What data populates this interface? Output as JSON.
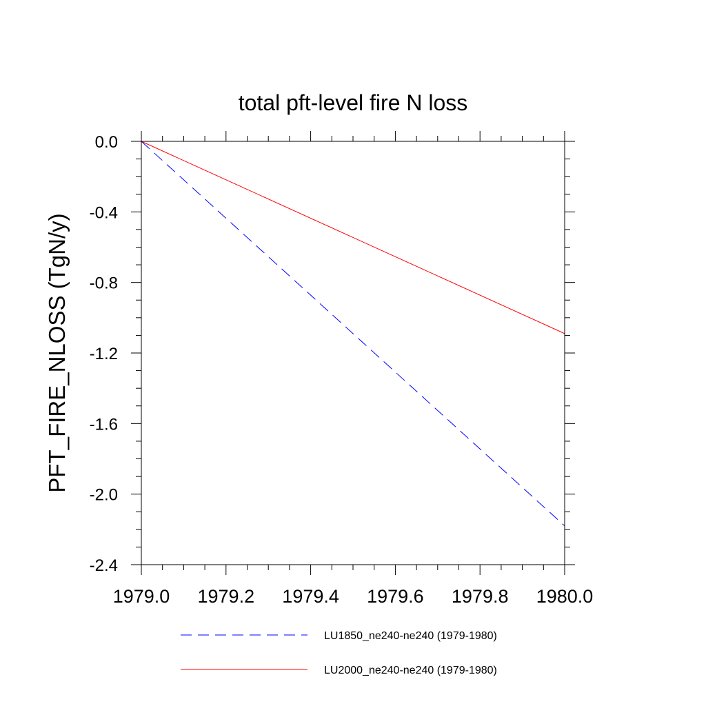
{
  "chart_data": {
    "type": "line",
    "title": "total pft-level fire N loss",
    "xlabel": "",
    "ylabel": "PFT_FIRE_NLOSS  (TgN/y)",
    "xlim": [
      1979.0,
      1980.0
    ],
    "ylim": [
      -2.4,
      0.0
    ],
    "x_ticks": [
      1979.0,
      1979.2,
      1979.4,
      1979.6,
      1979.8,
      1980.0
    ],
    "x_tick_labels": [
      "1979.0",
      "1979.2",
      "1979.4",
      "1979.6",
      "1979.8",
      "1980.0"
    ],
    "y_ticks": [
      0.0,
      -0.4,
      -0.8,
      -1.2,
      -1.6,
      -2.0,
      -2.4
    ],
    "y_tick_labels": [
      "0.0",
      "-0.4",
      "-0.8",
      "-1.2",
      "-1.6",
      "-2.0",
      "-2.4"
    ],
    "grid": false,
    "legend_position": "bottom",
    "series": [
      {
        "name": "LU1850_ne240-ne240 (1979-1980)",
        "color": "#0000ff",
        "style": "dashed",
        "x": [
          1979.0,
          1980.0
        ],
        "y": [
          0.0,
          -2.18
        ]
      },
      {
        "name": "LU2000_ne240-ne240 (1979-1980)",
        "color": "#ff0000",
        "style": "solid",
        "x": [
          1979.0,
          1980.0
        ],
        "y": [
          0.0,
          -1.09
        ]
      }
    ]
  }
}
